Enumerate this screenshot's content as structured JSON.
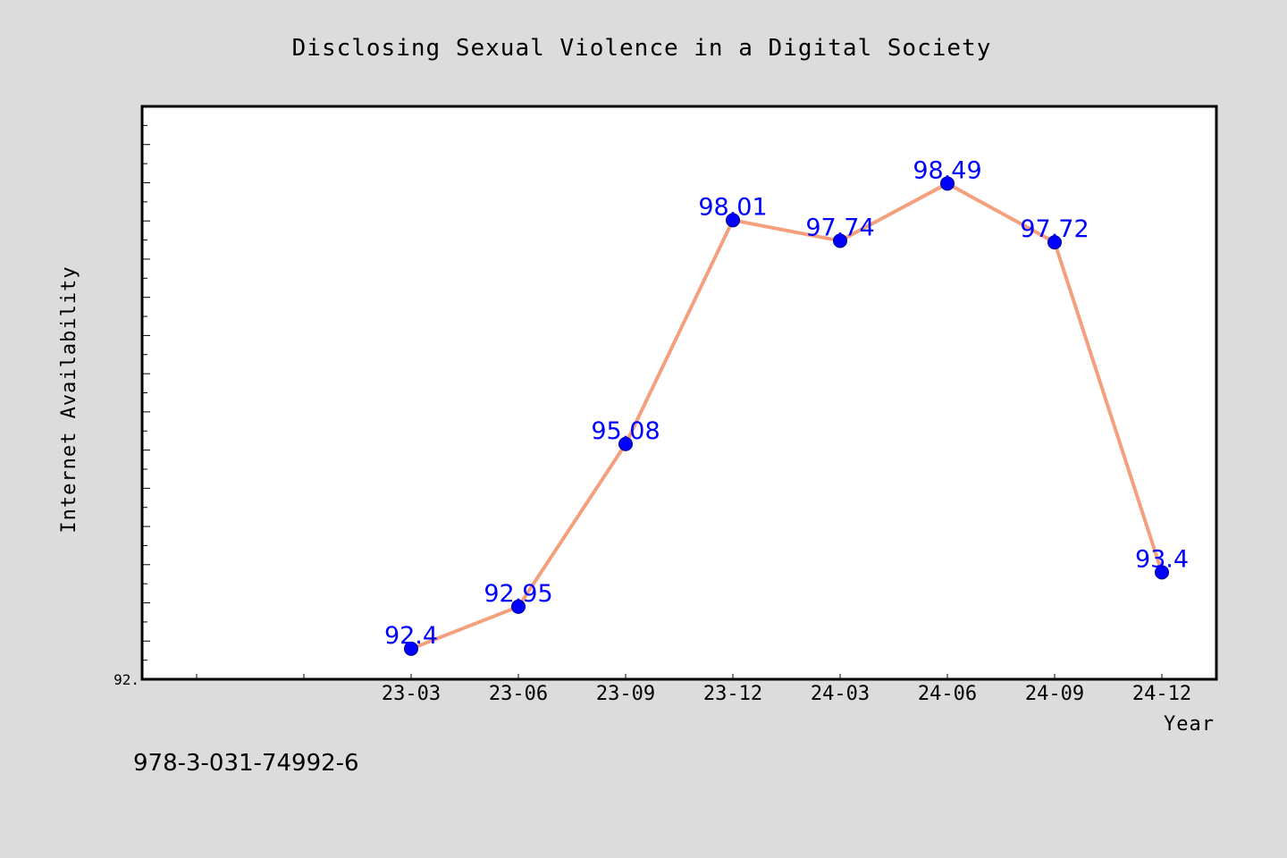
{
  "chart_data": {
    "type": "line",
    "title": "Disclosing Sexual Violence in a Digital Society",
    "xlabel": "Year",
    "ylabel": "Internet Availability",
    "categories": [
      "23-03",
      "23-06",
      "23-09",
      "23-12",
      "24-03",
      "24-06",
      "24-09",
      "24-12"
    ],
    "values": [
      92.4,
      92.95,
      95.08,
      98.01,
      97.74,
      98.49,
      97.72,
      93.4
    ],
    "data_labels": [
      "92.4",
      "92.95",
      "95.08",
      "98.01",
      "97.74",
      "98.49",
      "97.72",
      "93.4"
    ],
    "ylim": [
      92.0,
      99.5
    ],
    "y_tick_labels": [
      "92."
    ],
    "grid": false,
    "line_color": "#f4a07c",
    "marker_color": "#0000ff",
    "label_color": "#0000ff",
    "plot_background": "#ffffff",
    "figure_background": "#dcdcdc"
  },
  "footer": {
    "text": "978-3-031-74992-6"
  }
}
